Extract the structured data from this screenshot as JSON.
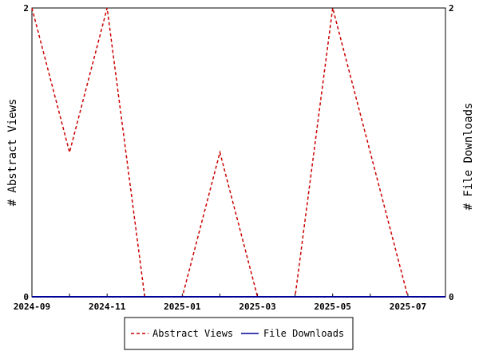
{
  "chart_data": {
    "type": "line",
    "x": [
      "2024-09",
      "2024-10",
      "2024-11",
      "2024-12",
      "2025-01",
      "2025-02",
      "2025-03",
      "2025-04",
      "2025-05",
      "2025-06",
      "2025-07",
      "2025-08"
    ],
    "x_tick_labels": [
      "2024-09",
      "2024-11",
      "2025-01",
      "2025-03",
      "2025-05",
      "2025-07"
    ],
    "series": [
      {
        "name": "Abstract Views",
        "axis": "left",
        "color": "#cc0000",
        "dash": "dashed",
        "values": [
          2,
          1,
          2,
          0,
          0,
          1,
          0,
          0,
          2,
          1,
          0,
          0
        ]
      },
      {
        "name": "File Downloads",
        "axis": "right",
        "color": "#000099",
        "dash": "solid",
        "values": [
          0,
          0,
          0,
          0,
          0,
          0,
          0,
          0,
          0,
          0,
          0,
          0
        ]
      }
    ],
    "ylabel": "# Abstract Views",
    "y2label": "# File Downloads",
    "ylim": [
      0,
      2
    ],
    "y2lim": [
      0,
      2
    ],
    "y_ticks": [
      "0",
      "2"
    ],
    "y2_ticks": [
      "0",
      "2"
    ],
    "grid": false,
    "legend_position": "bottom-center"
  }
}
